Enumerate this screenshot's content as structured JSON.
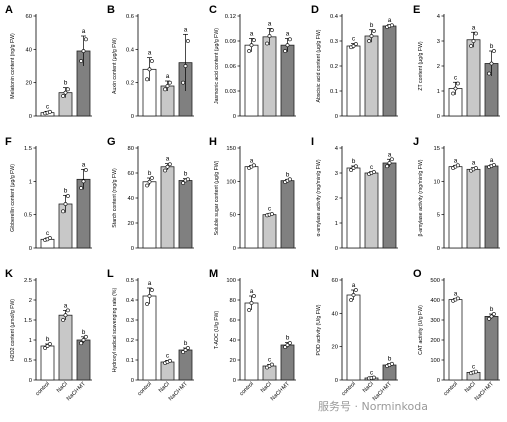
{
  "groups": [
    "control",
    "NaCl",
    "NaCl+MT"
  ],
  "colors": {
    "control": "#ffffff",
    "NaCl": "#c8c8c8",
    "NaCl+MT": "#808080",
    "stroke": "#222222",
    "dot": "#ffffff"
  },
  "watermark": "服务号 · Norminkoda",
  "chart_data": [
    {
      "type": "bar",
      "letter": "A",
      "ylabel": "Melatonin content (ng/g FW)",
      "ylim": [
        0,
        60
      ],
      "ticks": [
        0,
        20,
        40,
        60
      ],
      "values": [
        2,
        14,
        39
      ],
      "errors": [
        0.8,
        3,
        9
      ],
      "sig": [
        "c",
        "b",
        "a"
      ],
      "points": [
        [
          1.6,
          2.0,
          2.5
        ],
        [
          12,
          14,
          16
        ],
        [
          33,
          39,
          46
        ]
      ]
    },
    {
      "type": "bar",
      "letter": "B",
      "ylabel": "Auxin content (μg/g FW)",
      "ylim": [
        0,
        0.6
      ],
      "ticks": [
        0,
        0.2,
        0.4,
        0.6
      ],
      "values": [
        0.28,
        0.18,
        0.32
      ],
      "errors": [
        0.07,
        0.03,
        0.17
      ],
      "sig": [
        "a",
        "a",
        "a"
      ],
      "points": [
        [
          0.22,
          0.28,
          0.33
        ],
        [
          0.16,
          0.18,
          0.2
        ],
        [
          0.2,
          0.3,
          0.45
        ]
      ]
    },
    {
      "type": "bar",
      "letter": "C",
      "ylabel": "Jasmonic acid content (μg/g FW)",
      "ylim": [
        0,
        0.12
      ],
      "ticks": [
        0,
        0.03,
        0.06,
        0.09,
        0.12
      ],
      "values": [
        0.085,
        0.095,
        0.085
      ],
      "errors": [
        0.008,
        0.01,
        0.008
      ],
      "sig": [
        "a",
        "a",
        "a"
      ],
      "points": [
        [
          0.078,
          0.085,
          0.091
        ],
        [
          0.087,
          0.096,
          0.103
        ],
        [
          0.078,
          0.085,
          0.092
        ]
      ]
    },
    {
      "type": "bar",
      "letter": "D",
      "ylabel": "Abscisic acid content (μg/g FW)",
      "ylim": [
        0,
        0.4
      ],
      "ticks": [
        0,
        0.1,
        0.2,
        0.3,
        0.4
      ],
      "values": [
        0.28,
        0.32,
        0.36
      ],
      "errors": [
        0.01,
        0.025,
        0.005
      ],
      "sig": [
        "c",
        "b",
        "a"
      ],
      "points": [
        [
          0.275,
          0.28,
          0.288
        ],
        [
          0.3,
          0.32,
          0.34
        ],
        [
          0.356,
          0.36,
          0.363
        ]
      ]
    },
    {
      "type": "bar",
      "letter": "E",
      "ylabel": "ZT content (μg/g FW)",
      "ylim": [
        0,
        4
      ],
      "ticks": [
        0,
        1,
        2,
        3,
        4
      ],
      "values": [
        1.1,
        3.05,
        2.1
      ],
      "errors": [
        0.25,
        0.3,
        0.5
      ],
      "sig": [
        "c",
        "a",
        "b"
      ],
      "points": [
        [
          0.9,
          1.1,
          1.3
        ],
        [
          2.8,
          3.0,
          3.3
        ],
        [
          1.7,
          2.1,
          2.6
        ]
      ]
    },
    {
      "type": "bar",
      "letter": "F",
      "ylabel": "Gibberellin content (μg/g FW)",
      "ylim": [
        0,
        1.5
      ],
      "ticks": [
        0,
        0.5,
        1.0,
        1.5
      ],
      "values": [
        0.13,
        0.66,
        1.03
      ],
      "errors": [
        0.02,
        0.13,
        0.15
      ],
      "sig": [
        "c",
        "b",
        "a"
      ],
      "points": [
        [
          0.12,
          0.13,
          0.15
        ],
        [
          0.55,
          0.66,
          0.78
        ],
        [
          0.9,
          1.0,
          1.17
        ]
      ]
    },
    {
      "type": "bar",
      "letter": "G",
      "ylabel": "Starch content (mg/g FW)",
      "ylim": [
        0,
        80
      ],
      "ticks": [
        0,
        20,
        40,
        60,
        80
      ],
      "values": [
        53,
        65,
        54
      ],
      "errors": [
        3,
        2.5,
        1.5
      ],
      "sig": [
        "b",
        "a",
        "b"
      ],
      "points": [
        [
          50,
          53,
          56
        ],
        [
          62,
          65,
          67
        ],
        [
          52,
          54,
          55
        ]
      ]
    },
    {
      "type": "bar",
      "letter": "H",
      "ylabel": "Soluble sugar content (μg/g FW)",
      "ylim": [
        0,
        150
      ],
      "ticks": [
        0,
        50,
        100,
        150
      ],
      "values": [
        122,
        50,
        101
      ],
      "errors": [
        2,
        1.5,
        2
      ],
      "sig": [
        "a",
        "c",
        "b"
      ],
      "points": [
        [
          120,
          122,
          124
        ],
        [
          49,
          50,
          51
        ],
        [
          99,
          101,
          103
        ]
      ]
    },
    {
      "type": "bar",
      "letter": "I",
      "ylabel": "α-amylase activity (mg/min/g FW)",
      "ylim": [
        0,
        4
      ],
      "ticks": [
        0,
        1,
        2,
        3,
        4
      ],
      "values": [
        3.2,
        3.0,
        3.4
      ],
      "errors": [
        0.08,
        0.05,
        0.15
      ],
      "sig": [
        "b",
        "c",
        "a"
      ],
      "points": [
        [
          3.12,
          3.2,
          3.27
        ],
        [
          2.96,
          3.0,
          3.04
        ],
        [
          3.27,
          3.4,
          3.55
        ]
      ]
    },
    {
      "type": "bar",
      "letter": "J",
      "ylabel": "β-amylase activity (mg/min/g FW)",
      "ylim": [
        0,
        15
      ],
      "ticks": [
        0,
        5,
        10,
        15
      ],
      "values": [
        12.2,
        11.8,
        12.3
      ],
      "errors": [
        0.2,
        0.25,
        0.15
      ],
      "sig": [
        "a",
        "a",
        "a"
      ],
      "points": [
        [
          12.0,
          12.2,
          12.4
        ],
        [
          11.6,
          11.8,
          12.0
        ],
        [
          12.15,
          12.3,
          12.45
        ]
      ]
    },
    {
      "type": "bar",
      "letter": "K",
      "ylabel": "H2O2 content (μmol/g FW)",
      "ylim": [
        0,
        2.5
      ],
      "ticks": [
        0,
        0.5,
        1.0,
        1.5,
        2.0,
        2.5
      ],
      "values": [
        0.85,
        1.62,
        1.0
      ],
      "errors": [
        0.05,
        0.12,
        0.08
      ],
      "sig": [
        "b",
        "a",
        "b"
      ],
      "points": [
        [
          0.8,
          0.85,
          0.9
        ],
        [
          1.5,
          1.62,
          1.74
        ],
        [
          0.92,
          1.0,
          1.08
        ]
      ]
    },
    {
      "type": "bar",
      "letter": "L",
      "ylabel": "Hydroxyl radical scavenging rate (%)",
      "ylim": [
        0,
        0.5
      ],
      "ticks": [
        0,
        0.1,
        0.2,
        0.3,
        0.4,
        0.5
      ],
      "values": [
        0.42,
        0.09,
        0.15
      ],
      "errors": [
        0.04,
        0.008,
        0.01
      ],
      "sig": [
        "a",
        "c",
        "b"
      ],
      "points": [
        [
          0.38,
          0.42,
          0.45
        ],
        [
          0.085,
          0.09,
          0.096
        ],
        [
          0.14,
          0.15,
          0.16
        ]
      ]
    },
    {
      "type": "bar",
      "letter": "M",
      "ylabel": "T-AOC (U/g FW)",
      "ylim": [
        0,
        100
      ],
      "ticks": [
        0,
        20,
        40,
        60,
        80,
        100
      ],
      "values": [
        77,
        14,
        35
      ],
      "errors": [
        7,
        1.5,
        2.5
      ],
      "sig": [
        "a",
        "c",
        "b"
      ],
      "points": [
        [
          70,
          77,
          84
        ],
        [
          12.5,
          14,
          15.5
        ],
        [
          33,
          35,
          37
        ]
      ]
    },
    {
      "type": "bar",
      "letter": "N",
      "ylabel": "POD activity (U/g FW)",
      "ylim": [
        0,
        60
      ],
      "ticks": [
        0,
        20,
        40,
        60
      ],
      "values": [
        51,
        1.2,
        9
      ],
      "errors": [
        3,
        0.3,
        0.8
      ],
      "sig": [
        "a",
        "c",
        "b"
      ],
      "points": [
        [
          48,
          51,
          54
        ],
        [
          1.0,
          1.2,
          1.5
        ],
        [
          8.4,
          9,
          9.7
        ]
      ]
    },
    {
      "type": "bar",
      "letter": "O",
      "ylabel": "CAT activity (U/g FW)",
      "ylim": [
        0,
        500
      ],
      "ticks": [
        0,
        100,
        200,
        300,
        400,
        500
      ],
      "values": [
        402,
        38,
        318
      ],
      "errors": [
        6,
        4,
        12
      ],
      "sig": [
        "a",
        "c",
        "b"
      ],
      "points": [
        [
          396,
          402,
          408
        ],
        [
          34,
          38,
          42
        ],
        [
          306,
          318,
          330
        ]
      ]
    }
  ]
}
